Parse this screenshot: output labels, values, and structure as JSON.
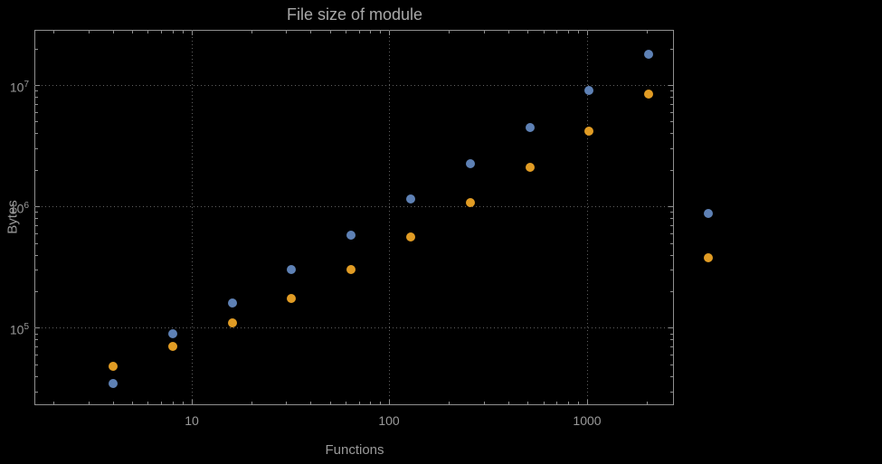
{
  "page": {
    "background": "#000000"
  },
  "chart_data": {
    "type": "scatter",
    "title": "File size of module",
    "xlabel": "Functions",
    "ylabel": "Bytes",
    "x_scale": "log",
    "y_scale": "log",
    "grid": true,
    "grid_style": "dotted",
    "legend": "none",
    "xlim": [
      1.6,
      2750
    ],
    "ylim": [
      23000,
      28500000
    ],
    "x_ticks": [
      10,
      100,
      1000
    ],
    "x_tick_labels": [
      "10",
      "100",
      "1000"
    ],
    "y_ticks": [
      100000,
      1000000,
      10000000
    ],
    "y_tick_labels": [
      "10^5",
      "10^6",
      "10^7"
    ],
    "x": [
      4,
      8,
      16,
      32,
      64,
      128,
      256,
      512,
      1024,
      2048,
      4096
    ],
    "series": [
      {
        "id": "series-1",
        "color": "#5e81b5",
        "values": [
          35000,
          90000,
          160000,
          300000,
          580000,
          1150000,
          2250000,
          4500000,
          9000000,
          18000000,
          880000
        ]
      },
      {
        "id": "series-2",
        "color": "#e19c24",
        "values": [
          48000,
          70000,
          110000,
          175000,
          300000,
          560000,
          1080000,
          2100000,
          4200000,
          8500000,
          380000
        ]
      }
    ],
    "colors": {
      "frame": "#8f8f8f",
      "grid": "#606060",
      "text": "#9a9a9a",
      "title": "#a8a8a8"
    }
  }
}
